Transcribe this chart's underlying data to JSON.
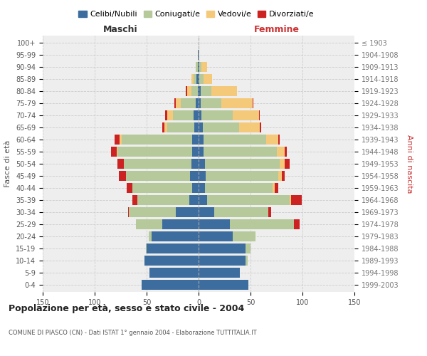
{
  "age_groups": [
    "0-4",
    "5-9",
    "10-14",
    "15-19",
    "20-24",
    "25-29",
    "30-34",
    "35-39",
    "40-44",
    "45-49",
    "50-54",
    "55-59",
    "60-64",
    "65-69",
    "70-74",
    "75-79",
    "80-84",
    "85-89",
    "90-94",
    "95-99",
    "100+"
  ],
  "birth_years": [
    "1999-2003",
    "1994-1998",
    "1989-1993",
    "1984-1988",
    "1979-1983",
    "1974-1978",
    "1969-1973",
    "1964-1968",
    "1959-1963",
    "1954-1958",
    "1949-1953",
    "1944-1948",
    "1939-1943",
    "1934-1938",
    "1929-1933",
    "1924-1928",
    "1919-1923",
    "1914-1918",
    "1909-1913",
    "1904-1908",
    "≤ 1903"
  ],
  "colors": {
    "celibi": "#3d6d9e",
    "coniugati": "#b5c99a",
    "vedovi": "#f5c97a",
    "divorziati": "#cc2222"
  },
  "maschi": {
    "celibi": [
      55,
      47,
      52,
      50,
      45,
      35,
      22,
      9,
      6,
      8,
      7,
      6,
      6,
      4,
      5,
      3,
      1,
      2,
      1,
      1,
      0
    ],
    "coniugati": [
      0,
      0,
      0,
      1,
      3,
      25,
      45,
      50,
      58,
      62,
      65,
      72,
      68,
      26,
      20,
      14,
      6,
      3,
      2,
      0,
      0
    ],
    "vedovi": [
      0,
      0,
      0,
      0,
      0,
      0,
      0,
      0,
      0,
      0,
      0,
      1,
      2,
      3,
      5,
      5,
      4,
      2,
      0,
      0,
      0
    ],
    "divorziati": [
      0,
      0,
      0,
      0,
      0,
      0,
      1,
      5,
      5,
      7,
      6,
      5,
      5,
      2,
      2,
      1,
      1,
      0,
      0,
      0,
      0
    ]
  },
  "femmine": {
    "celibi": [
      48,
      40,
      45,
      45,
      33,
      30,
      15,
      8,
      6,
      7,
      6,
      5,
      5,
      4,
      3,
      2,
      2,
      1,
      1,
      0,
      0
    ],
    "coniugati": [
      0,
      0,
      2,
      5,
      22,
      62,
      52,
      80,
      65,
      70,
      72,
      70,
      60,
      35,
      30,
      20,
      10,
      4,
      2,
      0,
      0
    ],
    "vedovi": [
      0,
      0,
      0,
      0,
      0,
      0,
      0,
      1,
      2,
      3,
      5,
      8,
      12,
      20,
      25,
      30,
      25,
      8,
      5,
      1,
      0
    ],
    "divorziati": [
      0,
      0,
      0,
      0,
      0,
      5,
      3,
      10,
      4,
      3,
      5,
      2,
      1,
      1,
      1,
      1,
      0,
      0,
      0,
      0,
      0
    ]
  },
  "title": "Popolazione per età, sesso e stato civile - 2004",
  "subtitle": "COMUNE DI PIASCO (CN) - Dati ISTAT 1° gennaio 2004 - Elaborazione TUTTITALIA.IT",
  "xlabel_left": "Maschi",
  "xlabel_right": "Femmine",
  "ylabel_left": "Fasce di età",
  "ylabel_right": "Anni di nascita",
  "xlim": 150,
  "legend_labels": [
    "Celibi/Nubili",
    "Coniugati/e",
    "Vedovi/e",
    "Divorziati/e"
  ],
  "background_color": "#eeeeee"
}
